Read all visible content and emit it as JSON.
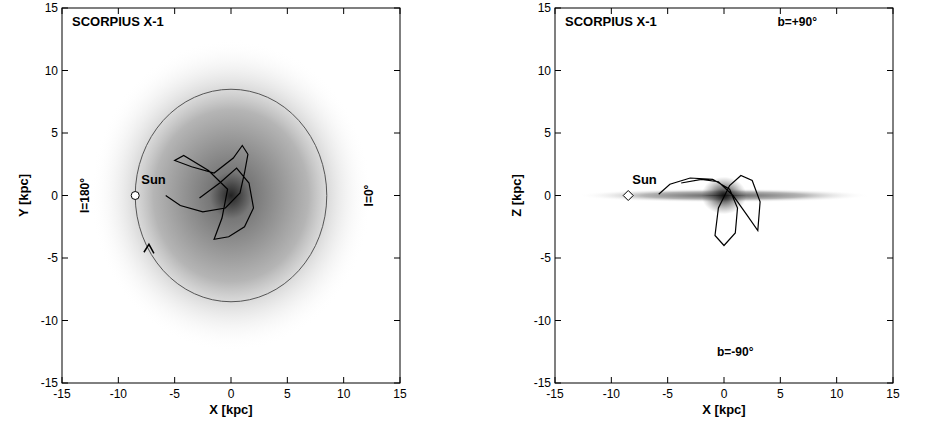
{
  "chart_data": [
    {
      "type": "line",
      "title": "SCORPIUS X-1",
      "x_label": "X [kpc]",
      "y_label": "Y [kpc]",
      "xlim": [
        -15,
        15
      ],
      "ylim": [
        -15,
        15
      ],
      "xticks": [
        -15,
        -10,
        -5,
        0,
        5,
        10,
        15
      ],
      "yticks": [
        -15,
        -10,
        -5,
        0,
        5,
        10,
        15
      ],
      "annotations": [
        "l=180°",
        "l=0°"
      ],
      "circle_radius": 8.5,
      "series": [
        {
          "color": "#000000",
          "line_style": "solid",
          "x": [
            -5.8,
            -4.5,
            -2.5,
            -0.5,
            0.8,
            1.2,
            1.5,
            1.0,
            0.2,
            -1.5,
            -3.5,
            -5.0,
            -4.2,
            -2.0,
            -0.3,
            -0.8,
            -1.5,
            -0.2,
            1.2,
            2.0,
            1.6,
            0.5,
            -1.0,
            -2.8
          ],
          "values": [
            0.0,
            -0.8,
            -1.3,
            -1.0,
            0.2,
            1.8,
            3.3,
            4.0,
            3.0,
            1.8,
            2.3,
            2.8,
            3.2,
            2.0,
            0.5,
            -1.8,
            -3.5,
            -3.3,
            -2.5,
            -1.0,
            1.0,
            2.2,
            1.0,
            -0.2
          ]
        },
        {
          "name": "Sun",
          "type": "scatter",
          "marker": "circle",
          "color": "#000000",
          "x": [
            -8.5
          ],
          "values": [
            0
          ]
        }
      ]
    },
    {
      "type": "line",
      "title": "SCORPIUS X-1",
      "x_label": "X [kpc]",
      "y_label": "Z [kpc]",
      "xlim": [
        -15,
        15
      ],
      "ylim": [
        -15,
        15
      ],
      "xticks": [
        -15,
        -10,
        -5,
        0,
        5,
        10,
        15
      ],
      "yticks": [
        -15,
        -10,
        -5,
        0,
        5,
        10,
        15
      ],
      "annotations": [
        "b=+90°",
        "b=-90°"
      ],
      "series": [
        {
          "color": "#000000",
          "line_style": "solid",
          "x": [
            -5.8,
            -4.8,
            -3.0,
            -1.0,
            0.5,
            1.2,
            1.0,
            0.0,
            -0.8,
            -0.5,
            0.5,
            1.5,
            2.5,
            3.2,
            3.0,
            2.0,
            0.8,
            -0.5,
            -2.0,
            -3.8
          ],
          "values": [
            0.1,
            0.9,
            1.4,
            1.3,
            0.5,
            -1.0,
            -3.0,
            -4.0,
            -3.2,
            -1.0,
            0.8,
            1.6,
            1.2,
            -0.5,
            -2.8,
            -1.5,
            0.0,
            1.1,
            1.3,
            1.0
          ]
        },
        {
          "name": "Sun",
          "type": "scatter",
          "marker": "diamond",
          "color": "#000000",
          "x": [
            -8.5
          ],
          "values": [
            0
          ]
        }
      ]
    }
  ]
}
